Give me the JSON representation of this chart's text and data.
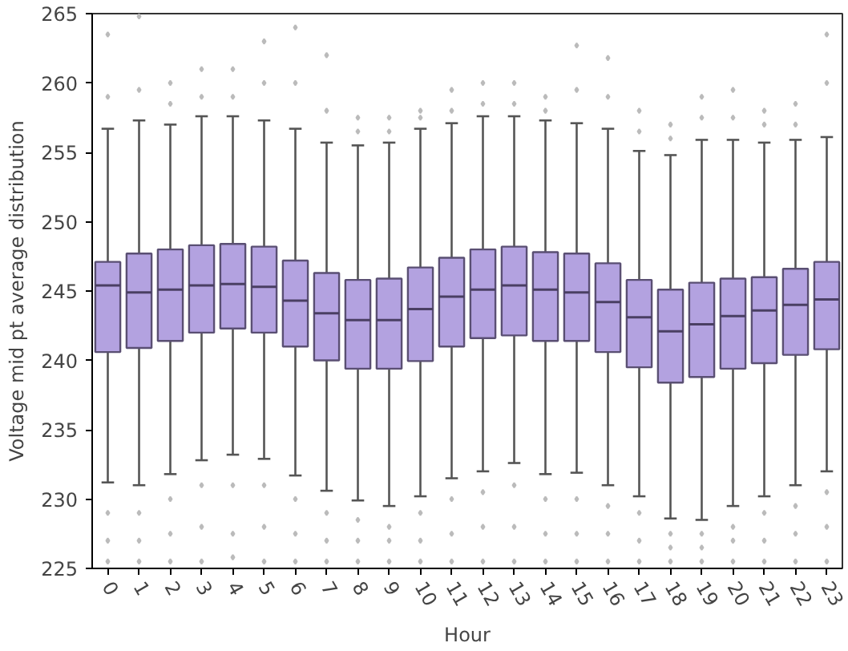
{
  "chart_data": {
    "type": "box",
    "xlabel": "Hour",
    "ylabel": "Voltage mid pt average distribution",
    "categories": [
      "0",
      "1",
      "2",
      "3",
      "4",
      "5",
      "6",
      "7",
      "8",
      "9",
      "10",
      "11",
      "12",
      "13",
      "14",
      "15",
      "16",
      "17",
      "18",
      "19",
      "20",
      "21",
      "22",
      "23"
    ],
    "color": "#b3a2e0",
    "ylim": [
      225,
      265
    ],
    "yticks": [
      225,
      230,
      235,
      240,
      245,
      250,
      255,
      260,
      265
    ],
    "grid": false,
    "boxes": [
      {
        "low": 231.2,
        "q1": 240.6,
        "median": 245.4,
        "q3": 247.1,
        "high": 256.7,
        "outliers": [
          263.5,
          259,
          229,
          227,
          225.5
        ]
      },
      {
        "low": 231.0,
        "q1": 240.9,
        "median": 244.9,
        "q3": 247.7,
        "high": 257.3,
        "outliers": [
          264.8,
          259.5,
          229,
          227,
          225.5
        ]
      },
      {
        "low": 231.8,
        "q1": 241.4,
        "median": 245.1,
        "q3": 248.0,
        "high": 257.0,
        "outliers": [
          260,
          258.5,
          230,
          227.5,
          225.5
        ]
      },
      {
        "low": 232.8,
        "q1": 242.0,
        "median": 245.4,
        "q3": 248.3,
        "high": 257.6,
        "outliers": [
          261,
          259,
          231,
          228,
          225.5
        ]
      },
      {
        "low": 233.2,
        "q1": 242.3,
        "median": 245.5,
        "q3": 248.4,
        "high": 257.6,
        "outliers": [
          261,
          259,
          231,
          227.5,
          225.8
        ]
      },
      {
        "low": 232.9,
        "q1": 242.0,
        "median": 245.3,
        "q3": 248.2,
        "high": 257.3,
        "outliers": [
          263,
          260,
          231,
          228,
          225.5
        ]
      },
      {
        "low": 231.7,
        "q1": 241.0,
        "median": 244.3,
        "q3": 247.2,
        "high": 256.7,
        "outliers": [
          264,
          260,
          230,
          227.5,
          225.5
        ]
      },
      {
        "low": 230.6,
        "q1": 240.0,
        "median": 243.4,
        "q3": 246.3,
        "high": 255.7,
        "outliers": [
          262,
          258,
          229,
          227,
          225.5
        ]
      },
      {
        "low": 229.9,
        "q1": 239.4,
        "median": 242.9,
        "q3": 245.8,
        "high": 255.5,
        "outliers": [
          257.5,
          256.5,
          228.5,
          227,
          225.5
        ]
      },
      {
        "low": 229.5,
        "q1": 239.4,
        "median": 242.9,
        "q3": 245.9,
        "high": 255.7,
        "outliers": [
          257.5,
          256.5,
          228,
          227,
          225.5
        ]
      },
      {
        "low": 230.2,
        "q1": 239.95,
        "median": 243.7,
        "q3": 246.7,
        "high": 256.7,
        "outliers": [
          258,
          257.5,
          229,
          227,
          225.5
        ]
      },
      {
        "low": 231.5,
        "q1": 241.0,
        "median": 244.6,
        "q3": 247.4,
        "high": 257.1,
        "outliers": [
          259.5,
          258,
          230,
          227.5,
          225.5
        ]
      },
      {
        "low": 232.0,
        "q1": 241.6,
        "median": 245.1,
        "q3": 248.0,
        "high": 257.6,
        "outliers": [
          260,
          258.5,
          230.5,
          228,
          225.5
        ]
      },
      {
        "low": 232.6,
        "q1": 241.8,
        "median": 245.4,
        "q3": 248.2,
        "high": 257.6,
        "outliers": [
          260,
          258.5,
          231,
          228,
          225.5
        ]
      },
      {
        "low": 231.8,
        "q1": 241.4,
        "median": 245.1,
        "q3": 247.8,
        "high": 257.3,
        "outliers": [
          259,
          258,
          230,
          227.5,
          225.5
        ]
      },
      {
        "low": 231.9,
        "q1": 241.4,
        "median": 244.9,
        "q3": 247.7,
        "high": 257.1,
        "outliers": [
          262.7,
          259.5,
          230,
          227.5,
          225.5
        ]
      },
      {
        "low": 231.0,
        "q1": 240.6,
        "median": 244.2,
        "q3": 247.0,
        "high": 256.7,
        "outliers": [
          261.8,
          259,
          229.5,
          227.5,
          225.5
        ]
      },
      {
        "low": 230.2,
        "q1": 239.5,
        "median": 243.1,
        "q3": 245.8,
        "high": 255.1,
        "outliers": [
          258,
          256.5,
          229,
          227,
          225.5
        ]
      },
      {
        "low": 228.6,
        "q1": 238.4,
        "median": 242.1,
        "q3": 245.1,
        "high": 254.8,
        "outliers": [
          257,
          256,
          227.5,
          226.5,
          225.5
        ]
      },
      {
        "low": 228.5,
        "q1": 238.8,
        "median": 242.6,
        "q3": 245.6,
        "high": 255.9,
        "outliers": [
          259,
          257.5,
          227.5,
          226.5,
          225.5
        ]
      },
      {
        "low": 229.5,
        "q1": 239.4,
        "median": 243.2,
        "q3": 245.9,
        "high": 255.9,
        "outliers": [
          259.5,
          257.5,
          228,
          227,
          225.5
        ]
      },
      {
        "low": 230.2,
        "q1": 239.8,
        "median": 243.6,
        "q3": 246.0,
        "high": 255.7,
        "outliers": [
          258,
          257,
          229,
          227,
          225.5
        ]
      },
      {
        "low": 231.0,
        "q1": 240.4,
        "median": 244.0,
        "q3": 246.6,
        "high": 255.9,
        "outliers": [
          258.5,
          257,
          229.5,
          227.5,
          225.5
        ]
      },
      {
        "low": 232.0,
        "q1": 240.8,
        "median": 244.4,
        "q3": 247.1,
        "high": 256.1,
        "outliers": [
          263.5,
          260,
          230.5,
          228,
          225.5
        ]
      }
    ]
  }
}
